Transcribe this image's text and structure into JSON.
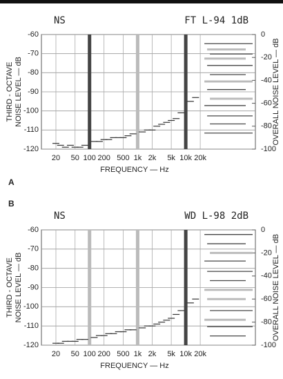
{
  "chart_data": [
    {
      "type": "noise-spectrum",
      "label": "A",
      "title": "NS",
      "subtitle": "FT L-94 1dB",
      "ylabel": [
        "THIRD - OCTAVE",
        "NOISE LEVEL — dB"
      ],
      "xlabel": "FREQUENCY — Hz",
      "y2label": "OVERALL NOISE LEVEL — dB",
      "log_x": true,
      "grid": true,
      "xlim": [
        10,
        280000
      ],
      "xticks": [
        20,
        50,
        100,
        200,
        500,
        {
          "value": 1000,
          "label": "1k"
        },
        {
          "value": 2000,
          "label": "2k"
        },
        {
          "value": 5000,
          "label": "5k"
        },
        {
          "value": 10000,
          "label": "10k"
        },
        {
          "value": 20000,
          "label": "20k"
        }
      ],
      "ylim": [
        -120,
        -60
      ],
      "yticks": [
        -60,
        -70,
        -80,
        -90,
        -100,
        -110,
        -120
      ],
      "y2lim": [
        -100,
        0
      ],
      "y2ticks": [
        0,
        -20,
        -40,
        -60,
        -80,
        -100
      ],
      "spectrum": {
        "color": "#333333",
        "x": [
          20,
          25,
          31.5,
          40,
          50,
          63,
          80,
          125,
          160,
          200,
          250,
          315,
          400,
          500,
          630,
          800,
          1250,
          1600,
          2000,
          2500,
          3150,
          4000,
          5000,
          6300,
          8000,
          12500,
          16000
        ],
        "values": [
          -117,
          -118,
          -119,
          -118,
          -119,
          -119,
          -118,
          -116,
          -116,
          -115,
          -115,
          -114,
          -114,
          -114,
          -113,
          -112,
          -111,
          -110,
          -110,
          -108,
          -107,
          -106,
          -105,
          -104,
          -101,
          -95,
          -93
        ]
      },
      "bars": {
        "x": [
          100,
          1000,
          10000
        ],
        "values": [
          -60,
          -60,
          -60
        ],
        "colors": [
          "#444444",
          "#bbbbbb",
          "#444444"
        ]
      },
      "overall": {
        "values": [
          -8,
          -13,
          -17,
          -21,
          -27,
          -35,
          -41,
          -48,
          -56,
          -62,
          -71,
          -78,
          -86
        ],
        "colors": [
          "#444444",
          "#bbbbbb",
          "#444444",
          "#bbbbbb",
          "#444444",
          "#444444",
          "#bbbbbb",
          "#444444",
          "#bbbbbb",
          "#444444",
          "#444444",
          "#444444",
          "#444444"
        ]
      }
    },
    {
      "type": "noise-spectrum",
      "label": "B",
      "title": "NS",
      "subtitle": "WD L-98 2dB",
      "ylabel": [
        "THIRD - OCTAVE",
        "NOISE LEVEL — dB"
      ],
      "xlabel": "FREQUENCY — Hz",
      "y2label": "OVERALL NOISE LEVEL — dB",
      "log_x": true,
      "grid": true,
      "xlim": [
        10,
        280000
      ],
      "xticks": [
        20,
        50,
        100,
        200,
        500,
        {
          "value": 1000,
          "label": "1k"
        },
        {
          "value": 2000,
          "label": "2k"
        },
        {
          "value": 5000,
          "label": "5k"
        },
        {
          "value": 10000,
          "label": "10k"
        },
        {
          "value": 20000,
          "label": "20k"
        }
      ],
      "ylim": [
        -120,
        -60
      ],
      "yticks": [
        -60,
        -70,
        -80,
        -90,
        -100,
        -110,
        -120
      ],
      "y2lim": [
        -100,
        0
      ],
      "y2ticks": [
        0,
        -20,
        -40,
        -60,
        -80,
        -100
      ],
      "spectrum": {
        "color": "#333333",
        "x": [
          20,
          25,
          31.5,
          40,
          50,
          63,
          80,
          125,
          160,
          200,
          250,
          315,
          400,
          500,
          630,
          800,
          1250,
          1600,
          2000,
          2500,
          3150,
          4000,
          5000,
          6300,
          8000,
          12500,
          16000
        ],
        "values": [
          -119,
          -119,
          -118,
          -118,
          -118,
          -117,
          -117,
          -116,
          -115,
          -115,
          -114,
          -114,
          -113,
          -113,
          -112,
          -112,
          -111,
          -110,
          -110,
          -109,
          -108,
          -107,
          -106,
          -104,
          -102,
          -98,
          -96
        ]
      },
      "bars": {
        "x": [
          100,
          1000,
          10000
        ],
        "values": [
          -60,
          -60,
          -60
        ],
        "colors": [
          "#bbbbbb",
          "#bbbbbb",
          "#444444"
        ]
      },
      "overall": {
        "values": [
          -4,
          -12,
          -20,
          -27,
          -36,
          -44,
          -52,
          -60,
          -70,
          -78,
          -84,
          -92
        ],
        "colors": [
          "#444444",
          "#444444",
          "#bbbbbb",
          "#444444",
          "#444444",
          "#444444",
          "#bbbbbb",
          "#bbbbbb",
          "#444444",
          "#bbbbbb",
          "#444444",
          "#444444"
        ]
      }
    }
  ]
}
